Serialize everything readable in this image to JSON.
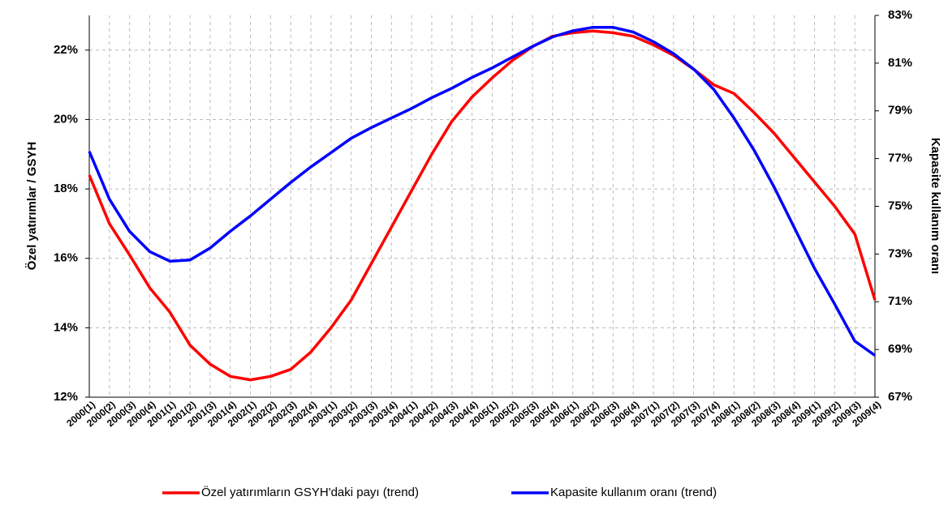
{
  "chart_data": {
    "type": "line",
    "y_label": "Özel yatırımlar / GSYH",
    "y2_label": "Kapasite kullanım oranı",
    "categories": [
      "2000(1)",
      "2000(2)",
      "2000(3)",
      "2000(4)",
      "2001(1)",
      "2001(2)",
      "2001(3)",
      "2001(4)",
      "2002(1)",
      "2002(2)",
      "2002(3)",
      "2002(4)",
      "2003(1)",
      "2003(2)",
      "2003(3)",
      "2003(4)",
      "2004(1)",
      "2004(2)",
      "2004(3)",
      "2004(4)",
      "2005(1)",
      "2005(2)",
      "2005(3)",
      "2005(4)",
      "2006(1)",
      "2006(2)",
      "2006(3)",
      "2006(4)",
      "2007(1)",
      "2007(2)",
      "2007(3)",
      "2007(4)",
      "2008(1)",
      "2008(2)",
      "2008(3)",
      "2008(4)",
      "2009(1)",
      "2009(2)",
      "2009(3)",
      "2009(4)"
    ],
    "series": [
      {
        "name": "Özel yatırımların GSYH'daki payı (trend)",
        "color": "#ff0000",
        "axis": "y",
        "values": [
          18.4,
          17.0,
          16.1,
          15.15,
          14.45,
          13.5,
          12.95,
          12.6,
          12.5,
          12.6,
          12.8,
          13.3,
          14.0,
          14.8,
          15.85,
          16.9,
          17.95,
          19.0,
          19.95,
          20.65,
          21.2,
          21.7,
          22.1,
          22.4,
          22.5,
          22.55,
          22.5,
          22.4,
          22.15,
          21.85,
          21.45,
          21.0,
          20.75,
          20.2,
          19.6,
          18.9,
          18.2,
          17.5,
          16.7,
          14.8
        ]
      },
      {
        "name": "Kapasite kullanım oranı (trend)",
        "color": "#0000ff",
        "axis": "y2",
        "values": [
          77.3,
          75.3,
          73.95,
          73.1,
          72.7,
          72.75,
          73.25,
          73.95,
          74.6,
          75.3,
          76.0,
          76.65,
          77.25,
          77.85,
          78.3,
          78.7,
          79.1,
          79.55,
          79.95,
          80.4,
          80.8,
          81.25,
          81.7,
          82.1,
          82.35,
          82.5,
          82.5,
          82.3,
          81.9,
          81.4,
          80.75,
          79.9,
          78.7,
          77.35,
          75.8,
          74.1,
          72.4,
          70.9,
          69.35,
          68.75
        ]
      }
    ],
    "ylim": [
      12,
      23
    ],
    "yticks": [
      {
        "value": 12,
        "label": "12%"
      },
      {
        "value": 14,
        "label": "14%"
      },
      {
        "value": 16,
        "label": "16%"
      },
      {
        "value": 18,
        "label": "18%"
      },
      {
        "value": 20,
        "label": "20%"
      },
      {
        "value": 22,
        "label": "22%"
      }
    ],
    "y2lim": [
      67,
      83
    ],
    "y2ticks": [
      {
        "value": 67,
        "label": "67%"
      },
      {
        "value": 69,
        "label": "69%"
      },
      {
        "value": 71,
        "label": "71%"
      },
      {
        "value": 73,
        "label": "73%"
      },
      {
        "value": 75,
        "label": "75%"
      },
      {
        "value": 77,
        "label": "77%"
      },
      {
        "value": 79,
        "label": "79%"
      },
      {
        "value": 81,
        "label": "81%"
      },
      {
        "value": 83,
        "label": "83%"
      }
    ],
    "grid": true,
    "legend": "bottom"
  }
}
